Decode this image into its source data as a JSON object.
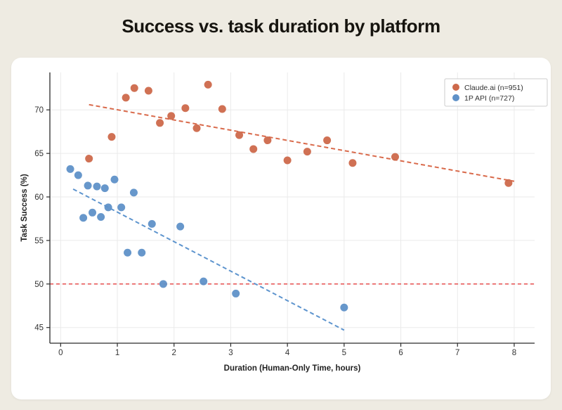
{
  "page": {
    "background_color": "#EEEBE2",
    "card_color": "#FFFFFF"
  },
  "chart_data": {
    "type": "scatter",
    "title": "Success vs. task duration by platform",
    "xlabel": "Duration (Human-Only Time, hours)",
    "ylabel": "Task Success (%)",
    "xlim": [
      -0.19,
      8.36
    ],
    "ylim": [
      43.2,
      74.3
    ],
    "xticks": [
      0,
      1,
      2,
      3,
      4,
      5,
      6,
      7,
      8
    ],
    "yticks": [
      45,
      50,
      55,
      60,
      65,
      70
    ],
    "grid": true,
    "grid_color": "#EAEAEA",
    "axis_color": "#2b2b2b",
    "tick_label_color": "#333333",
    "legend_position": "top-right",
    "series": [
      {
        "name": "Claude.ai (n=951)",
        "color": "#CD694B",
        "trend_color": "#D96A4B",
        "points": [
          [
            0.5,
            64.4
          ],
          [
            0.9,
            66.9
          ],
          [
            1.15,
            71.4
          ],
          [
            1.3,
            72.5
          ],
          [
            1.55,
            72.2
          ],
          [
            1.75,
            68.5
          ],
          [
            1.95,
            69.3
          ],
          [
            2.2,
            70.2
          ],
          [
            2.4,
            67.9
          ],
          [
            2.6,
            72.9
          ],
          [
            2.85,
            70.1
          ],
          [
            3.15,
            67.1
          ],
          [
            3.4,
            65.5
          ],
          [
            3.65,
            66.5
          ],
          [
            4.0,
            64.2
          ],
          [
            4.35,
            65.2
          ],
          [
            4.7,
            66.5
          ],
          [
            5.15,
            63.9
          ],
          [
            5.9,
            64.6
          ],
          [
            7.9,
            61.6
          ]
        ],
        "trend": {
          "x1": 0.5,
          "y1": 70.6,
          "x2": 8.0,
          "y2": 61.8
        }
      },
      {
        "name": "1P API (n=727)",
        "color": "#5F91C8",
        "trend_color": "#5D94CE",
        "points": [
          [
            0.17,
            63.2
          ],
          [
            0.31,
            62.5
          ],
          [
            0.4,
            57.6
          ],
          [
            0.48,
            61.3
          ],
          [
            0.56,
            58.2
          ],
          [
            0.64,
            61.2
          ],
          [
            0.71,
            57.7
          ],
          [
            0.78,
            61.0
          ],
          [
            0.84,
            58.8
          ],
          [
            0.95,
            62.0
          ],
          [
            1.07,
            58.8
          ],
          [
            1.18,
            53.6
          ],
          [
            1.29,
            60.5
          ],
          [
            1.43,
            53.6
          ],
          [
            1.61,
            56.9
          ],
          [
            1.81,
            50.0
          ],
          [
            2.11,
            56.6
          ],
          [
            2.52,
            50.3
          ],
          [
            3.09,
            48.9
          ],
          [
            5.0,
            47.3
          ]
        ],
        "trend": {
          "x1": 0.22,
          "y1": 60.9,
          "x2": 5.0,
          "y2": 44.7
        }
      }
    ],
    "reference_line": {
      "y": 50,
      "color": "#E43F3F",
      "style": "dashed"
    }
  }
}
